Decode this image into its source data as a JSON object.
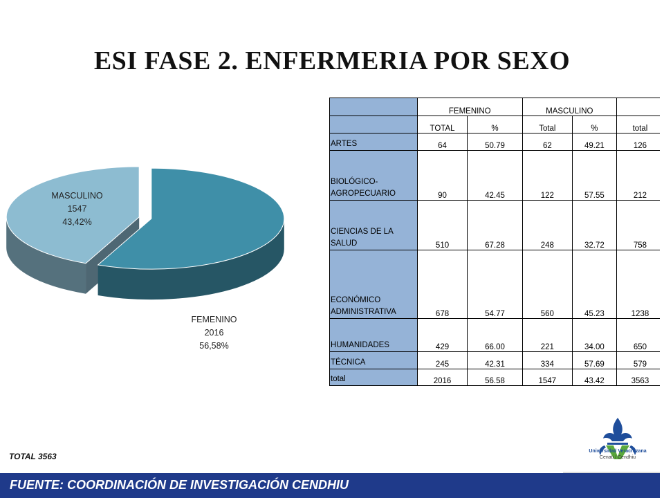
{
  "title": "ESI FASE 2. ENFERMERIA POR SEXO",
  "chart_data": {
    "type": "pie",
    "style": "3d-exploded",
    "slices": [
      {
        "name": "FEMENINO",
        "value": 2016,
        "percent_label": "56,58%",
        "color": "#3f8fa8"
      },
      {
        "name": "MASCULINO",
        "value": 1547,
        "percent_label": "43,42%",
        "color": "#8dbcd1"
      }
    ]
  },
  "table": {
    "header1": [
      "",
      "FEMENINO",
      "",
      "MASCULINO",
      "",
      ""
    ],
    "header2": [
      "",
      "TOTAL",
      "%",
      "Total",
      "%",
      "total"
    ],
    "rows": [
      {
        "label": "ARTES",
        "cells": [
          "64",
          "50.79",
          "62",
          "49.21",
          "126"
        ]
      },
      {
        "label": "BIOLÓGICO-AGROPECUARIO",
        "cells": [
          "90",
          "42.45",
          "122",
          "57.55",
          "212"
        ]
      },
      {
        "label": "CIENCIAS DE LA SALUD",
        "cells": [
          "510",
          "67.28",
          "248",
          "32.72",
          "758"
        ]
      },
      {
        "label": "ECONÓMICO ADMINISTRATIVA",
        "cells": [
          "678",
          "54.77",
          "560",
          "45.23",
          "1238"
        ]
      },
      {
        "label": "HUMANIDADES",
        "cells": [
          "429",
          "66.00",
          "221",
          "34.00",
          "650"
        ]
      },
      {
        "label": "TÉCNICA",
        "cells": [
          "245",
          "42.31",
          "334",
          "57.69",
          "579"
        ]
      },
      {
        "label": "total",
        "cells": [
          "2016",
          "56.58",
          "1547",
          "43.42",
          "3563"
        ]
      }
    ]
  },
  "total_note": "TOTAL  3563",
  "logo": {
    "line1": "Universidad Veracruzana",
    "line2": "Cenati / Cendhiu"
  },
  "footer": "FUENTE:   COORDINACIÓN DE INVESTIGACIÓN CENDHIU",
  "colors": {
    "accent": "#1f3a8a",
    "table_label_bg": "#95b3d7",
    "logo_blue": "#1f4e9b",
    "logo_green": "#5aa83c"
  }
}
